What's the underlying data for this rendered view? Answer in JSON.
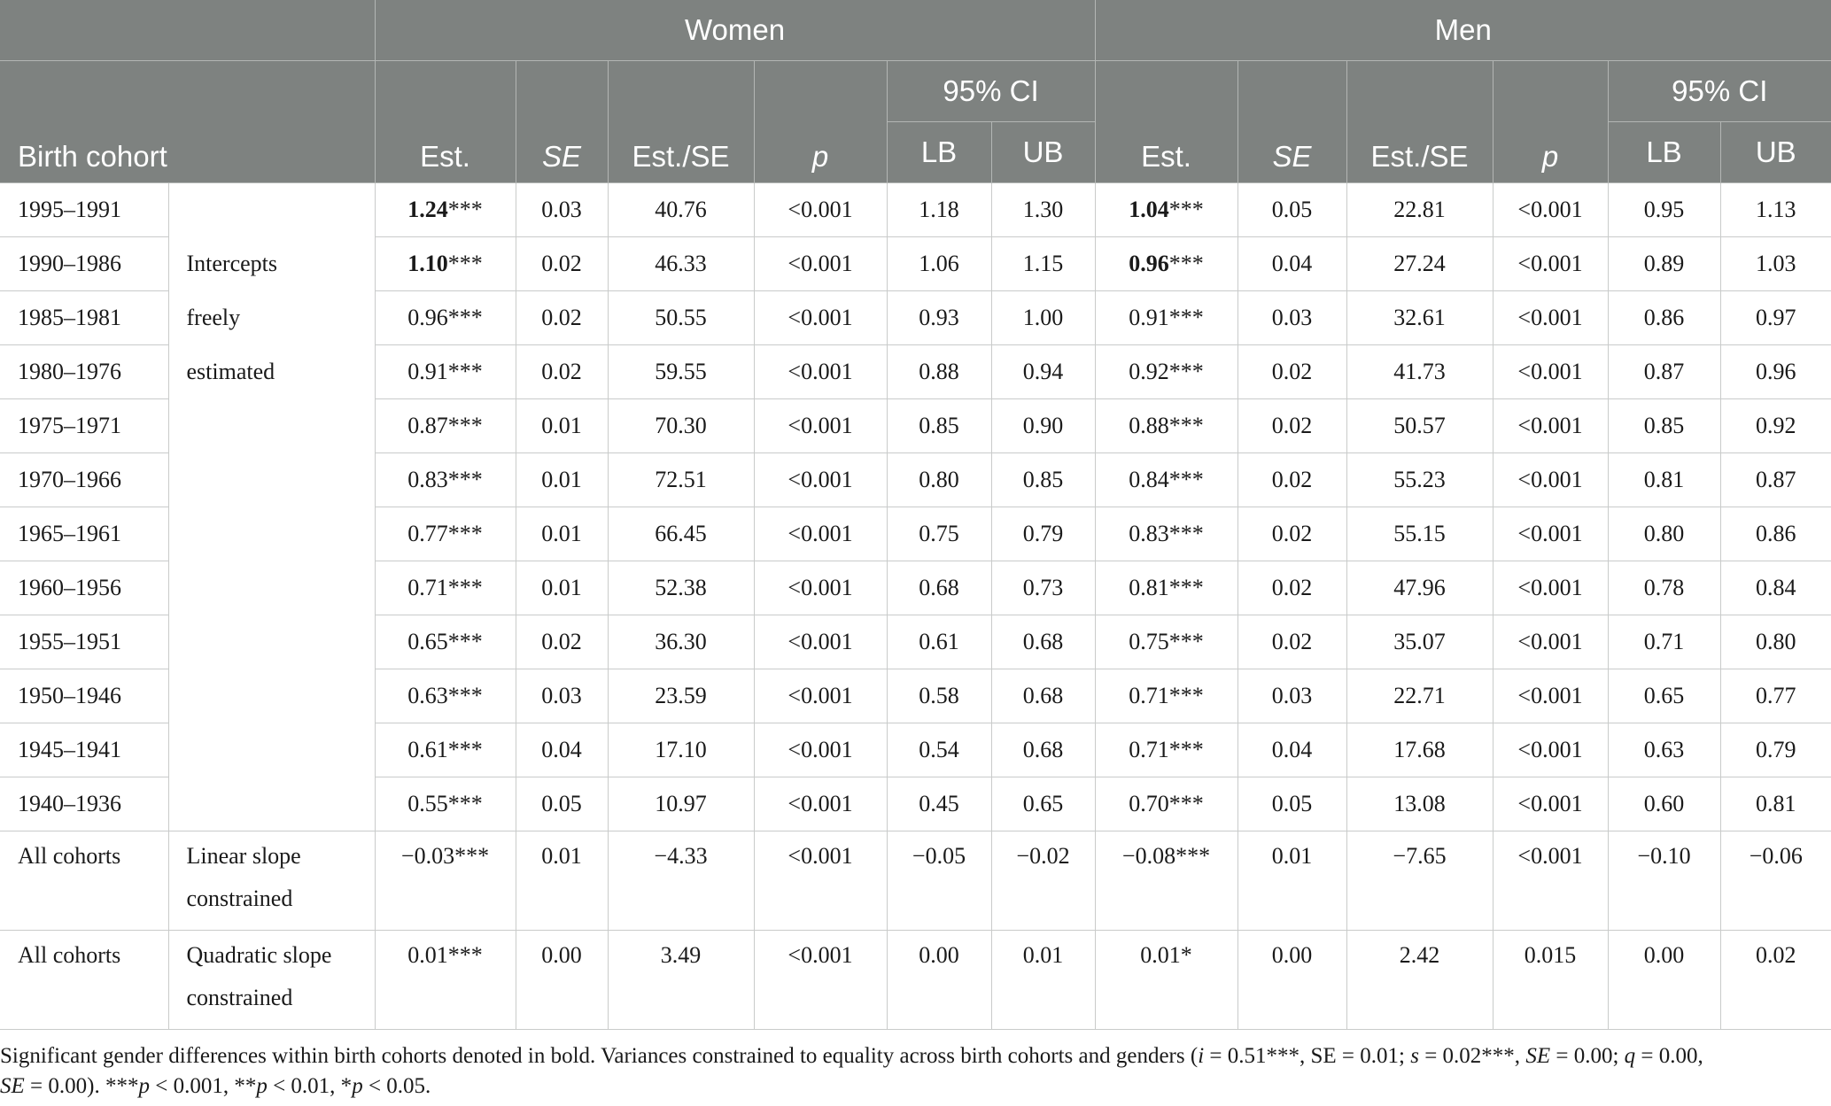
{
  "header": {
    "women_label": "Women",
    "men_label": "Men",
    "ci_label": "95% CI",
    "birth_cohort": "Birth cohort",
    "est": "Est.",
    "se": "SE",
    "est_se": "Est./SE",
    "p": "p",
    "lb": "LB",
    "ub": "UB"
  },
  "rows": [
    {
      "cohort": "1995–1991",
      "desc": "",
      "w_est": "1.24",
      "w_est_bold": true,
      "w_sig": "***",
      "w_se": "0.03",
      "w_ratio": "40.76",
      "w_p": "<0.001",
      "w_lb": "1.18",
      "w_ub": "1.30",
      "m_est": "1.04",
      "m_est_bold": true,
      "m_sig": "***",
      "m_se": "0.05",
      "m_ratio": "22.81",
      "m_p": "<0.001",
      "m_lb": "0.95",
      "m_ub": "1.13"
    },
    {
      "cohort": "1990–1986",
      "desc": "Intercepts",
      "w_est": "1.10",
      "w_est_bold": true,
      "w_sig": "***",
      "w_se": "0.02",
      "w_ratio": "46.33",
      "w_p": "<0.001",
      "w_lb": "1.06",
      "w_ub": "1.15",
      "m_est": "0.96",
      "m_est_bold": true,
      "m_sig": "***",
      "m_se": "0.04",
      "m_ratio": "27.24",
      "m_p": "<0.001",
      "m_lb": "0.89",
      "m_ub": "1.03"
    },
    {
      "cohort": "1985–1981",
      "desc": "freely",
      "w_est": "0.96",
      "w_est_bold": false,
      "w_sig": "***",
      "w_se": "0.02",
      "w_ratio": "50.55",
      "w_p": "<0.001",
      "w_lb": "0.93",
      "w_ub": "1.00",
      "m_est": "0.91",
      "m_est_bold": false,
      "m_sig": "***",
      "m_se": "0.03",
      "m_ratio": "32.61",
      "m_p": "<0.001",
      "m_lb": "0.86",
      "m_ub": "0.97"
    },
    {
      "cohort": "1980–1976",
      "desc": "estimated",
      "w_est": "0.91",
      "w_est_bold": false,
      "w_sig": "***",
      "w_se": "0.02",
      "w_ratio": "59.55",
      "w_p": "<0.001",
      "w_lb": "0.88",
      "w_ub": "0.94",
      "m_est": "0.92",
      "m_est_bold": false,
      "m_sig": "***",
      "m_se": "0.02",
      "m_ratio": "41.73",
      "m_p": "<0.001",
      "m_lb": "0.87",
      "m_ub": "0.96"
    },
    {
      "cohort": "1975–1971",
      "desc": "",
      "w_est": "0.87",
      "w_est_bold": false,
      "w_sig": "***",
      "w_se": "0.01",
      "w_ratio": "70.30",
      "w_p": "<0.001",
      "w_lb": "0.85",
      "w_ub": "0.90",
      "m_est": "0.88",
      "m_est_bold": false,
      "m_sig": "***",
      "m_se": "0.02",
      "m_ratio": "50.57",
      "m_p": "<0.001",
      "m_lb": "0.85",
      "m_ub": "0.92"
    },
    {
      "cohort": "1970–1966",
      "desc": "",
      "w_est": "0.83",
      "w_est_bold": false,
      "w_sig": "***",
      "w_se": "0.01",
      "w_ratio": "72.51",
      "w_p": "<0.001",
      "w_lb": "0.80",
      "w_ub": "0.85",
      "m_est": "0.84",
      "m_est_bold": false,
      "m_sig": "***",
      "m_se": "0.02",
      "m_ratio": "55.23",
      "m_p": "<0.001",
      "m_lb": "0.81",
      "m_ub": "0.87"
    },
    {
      "cohort": "1965–1961",
      "desc": "",
      "w_est": "0.77",
      "w_est_bold": false,
      "w_sig": "***",
      "w_se": "0.01",
      "w_ratio": "66.45",
      "w_p": "<0.001",
      "w_lb": "0.75",
      "w_ub": "0.79",
      "m_est": "0.83",
      "m_est_bold": false,
      "m_sig": "***",
      "m_se": "0.02",
      "m_ratio": "55.15",
      "m_p": "<0.001",
      "m_lb": "0.80",
      "m_ub": "0.86"
    },
    {
      "cohort": "1960–1956",
      "desc": "",
      "w_est": "0.71",
      "w_est_bold": false,
      "w_sig": "***",
      "w_se": "0.01",
      "w_ratio": "52.38",
      "w_p": "<0.001",
      "w_lb": "0.68",
      "w_ub": "0.73",
      "m_est": "0.81",
      "m_est_bold": false,
      "m_sig": "***",
      "m_se": "0.02",
      "m_ratio": "47.96",
      "m_p": "<0.001",
      "m_lb": "0.78",
      "m_ub": "0.84"
    },
    {
      "cohort": "1955–1951",
      "desc": "",
      "w_est": "0.65",
      "w_est_bold": false,
      "w_sig": "***",
      "w_se": "0.02",
      "w_ratio": "36.30",
      "w_p": "<0.001",
      "w_lb": "0.61",
      "w_ub": "0.68",
      "m_est": "0.75",
      "m_est_bold": false,
      "m_sig": "***",
      "m_se": "0.02",
      "m_ratio": "35.07",
      "m_p": "<0.001",
      "m_lb": "0.71",
      "m_ub": "0.80"
    },
    {
      "cohort": "1950–1946",
      "desc": "",
      "w_est": "0.63",
      "w_est_bold": false,
      "w_sig": "***",
      "w_se": "0.03",
      "w_ratio": "23.59",
      "w_p": "<0.001",
      "w_lb": "0.58",
      "w_ub": "0.68",
      "m_est": "0.71",
      "m_est_bold": false,
      "m_sig": "***",
      "m_se": "0.03",
      "m_ratio": "22.71",
      "m_p": "<0.001",
      "m_lb": "0.65",
      "m_ub": "0.77"
    },
    {
      "cohort": "1945–1941",
      "desc": "",
      "w_est": "0.61",
      "w_est_bold": false,
      "w_sig": "***",
      "w_se": "0.04",
      "w_ratio": "17.10",
      "w_p": "<0.001",
      "w_lb": "0.54",
      "w_ub": "0.68",
      "m_est": "0.71",
      "m_est_bold": false,
      "m_sig": "***",
      "m_se": "0.04",
      "m_ratio": "17.68",
      "m_p": "<0.001",
      "m_lb": "0.63",
      "m_ub": "0.79"
    },
    {
      "cohort": "1940–1936",
      "desc": "",
      "w_est": "0.55",
      "w_est_bold": false,
      "w_sig": "***",
      "w_se": "0.05",
      "w_ratio": "10.97",
      "w_p": "<0.001",
      "w_lb": "0.45",
      "w_ub": "0.65",
      "m_est": "0.70",
      "m_est_bold": false,
      "m_sig": "***",
      "m_se": "0.05",
      "m_ratio": "13.08",
      "m_p": "<0.001",
      "m_lb": "0.60",
      "m_ub": "0.81"
    }
  ],
  "slope_rows": [
    {
      "cohort": "All cohorts",
      "desc_line1": "Linear slope",
      "desc_line2": "constrained",
      "w_est": "−0.03***",
      "w_se": "0.01",
      "w_ratio": "−4.33",
      "w_p": "<0.001",
      "w_lb": "−0.05",
      "w_ub": "−0.02",
      "m_est": "−0.08***",
      "m_se": "0.01",
      "m_ratio": "−7.65",
      "m_p": "<0.001",
      "m_lb": "−0.10",
      "m_ub": "−0.06"
    },
    {
      "cohort": "All cohorts",
      "desc_line1": "Quadratic slope",
      "desc_line2": "constrained",
      "w_est": "0.01***",
      "w_se": "0.00",
      "w_ratio": "3.49",
      "w_p": "<0.001",
      "w_lb": "0.00",
      "w_ub": "0.01",
      "m_est": "0.01*",
      "m_se": "0.00",
      "m_ratio": "2.42",
      "m_p": "0.015",
      "m_lb": "0.00",
      "m_ub": "0.02"
    }
  ],
  "note": {
    "part1": "Significant gender differences within birth cohorts denoted in bold. Variances constrained to equality across birth cohorts and genders (",
    "i": "i",
    "part2": " = 0.51***, SE = 0.01; ",
    "s": "s",
    "part3": " = 0.02***, ",
    "se": "SE",
    "part4": " = 0.00; ",
    "q": "q",
    "part5": " = 0.00,",
    "se2": "SE",
    "part6": " = 0.00). ***",
    "p1": "p",
    "part7": " < 0.001, **",
    "p2": "p",
    "part8": " < 0.01, *",
    "p3": "p",
    "part9": " < 0.05."
  }
}
